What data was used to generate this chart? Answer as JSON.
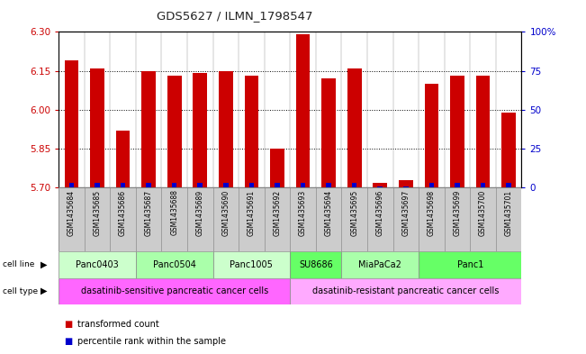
{
  "title": "GDS5627 / ILMN_1798547",
  "samples": [
    "GSM1435684",
    "GSM1435685",
    "GSM1435686",
    "GSM1435687",
    "GSM1435688",
    "GSM1435689",
    "GSM1435690",
    "GSM1435691",
    "GSM1435692",
    "GSM1435693",
    "GSM1435694",
    "GSM1435695",
    "GSM1435696",
    "GSM1435697",
    "GSM1435698",
    "GSM1435699",
    "GSM1435700",
    "GSM1435701"
  ],
  "transformed_count": [
    6.19,
    6.16,
    5.92,
    6.15,
    6.13,
    6.14,
    6.15,
    6.13,
    5.85,
    6.29,
    6.12,
    6.16,
    5.72,
    5.73,
    6.1,
    6.13,
    6.13,
    5.99
  ],
  "percentile_rank": [
    3,
    3,
    3,
    3,
    3,
    3,
    3,
    3,
    3,
    3,
    3,
    3,
    1,
    1,
    3,
    3,
    3,
    3
  ],
  "y_min": 5.7,
  "y_max": 6.3,
  "y_ticks": [
    5.7,
    5.85,
    6.0,
    6.15,
    6.3
  ],
  "right_y_ticks": [
    0,
    25,
    50,
    75,
    100
  ],
  "bar_color": "#cc0000",
  "percentile_color": "#0000cc",
  "cell_lines": [
    {
      "label": "Panc0403",
      "start": 0,
      "end": 3,
      "color": "#ccffcc"
    },
    {
      "label": "Panc0504",
      "start": 3,
      "end": 6,
      "color": "#aaffaa"
    },
    {
      "label": "Panc1005",
      "start": 6,
      "end": 9,
      "color": "#ccffcc"
    },
    {
      "label": "SU8686",
      "start": 9,
      "end": 11,
      "color": "#66ff66"
    },
    {
      "label": "MiaPaCa2",
      "start": 11,
      "end": 14,
      "color": "#aaffaa"
    },
    {
      "label": "Panc1",
      "start": 14,
      "end": 18,
      "color": "#66ff66"
    }
  ],
  "cell_types": [
    {
      "label": "dasatinib-sensitive pancreatic cancer cells",
      "start": 0,
      "end": 9,
      "color": "#ff66ff"
    },
    {
      "label": "dasatinib-resistant pancreatic cancer cells",
      "start": 9,
      "end": 18,
      "color": "#ffaaff"
    }
  ],
  "bar_width": 0.55,
  "legend_items": [
    {
      "color": "#cc0000",
      "label": "transformed count"
    },
    {
      "color": "#0000cc",
      "label": "percentile rank within the sample"
    }
  ],
  "left_tick_color": "#cc0000",
  "right_tick_color": "#0000cc",
  "sample_row_color": "#cccccc",
  "fig_width": 6.51,
  "fig_height": 3.93
}
